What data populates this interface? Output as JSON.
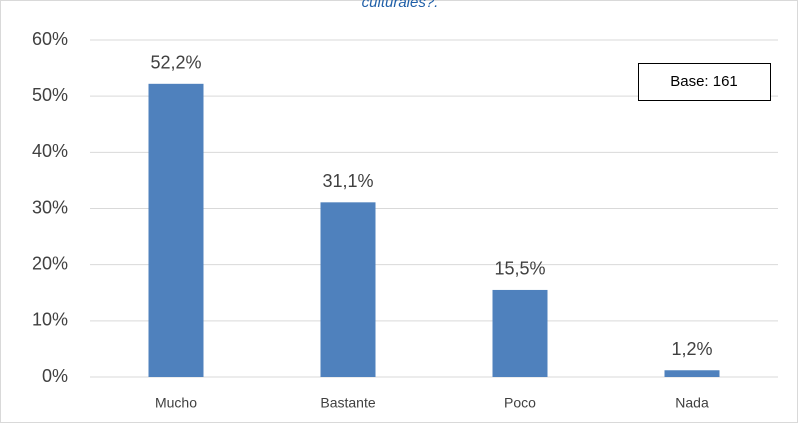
{
  "chart_data": {
    "type": "bar",
    "title": "culturales?.",
    "categories": [
      "Mucho",
      "Bastante",
      "Poco",
      "Nada"
    ],
    "values": [
      52.2,
      31.1,
      15.5,
      1.2
    ],
    "value_labels": [
      "52,2%",
      "31,1%",
      "15,5%",
      "1,2%"
    ],
    "color": "#4f81bd",
    "ylim": [
      0,
      60
    ],
    "yticks": [
      {
        "value": 0,
        "label": "0%"
      },
      {
        "value": 10,
        "label": "10%"
      },
      {
        "value": 20,
        "label": "20%"
      },
      {
        "value": 30,
        "label": "30%"
      },
      {
        "value": 40,
        "label": "40%"
      },
      {
        "value": 50,
        "label": "50%"
      },
      {
        "value": 60,
        "label": "60%"
      }
    ],
    "grid": true,
    "annotation": "Base: 161"
  }
}
